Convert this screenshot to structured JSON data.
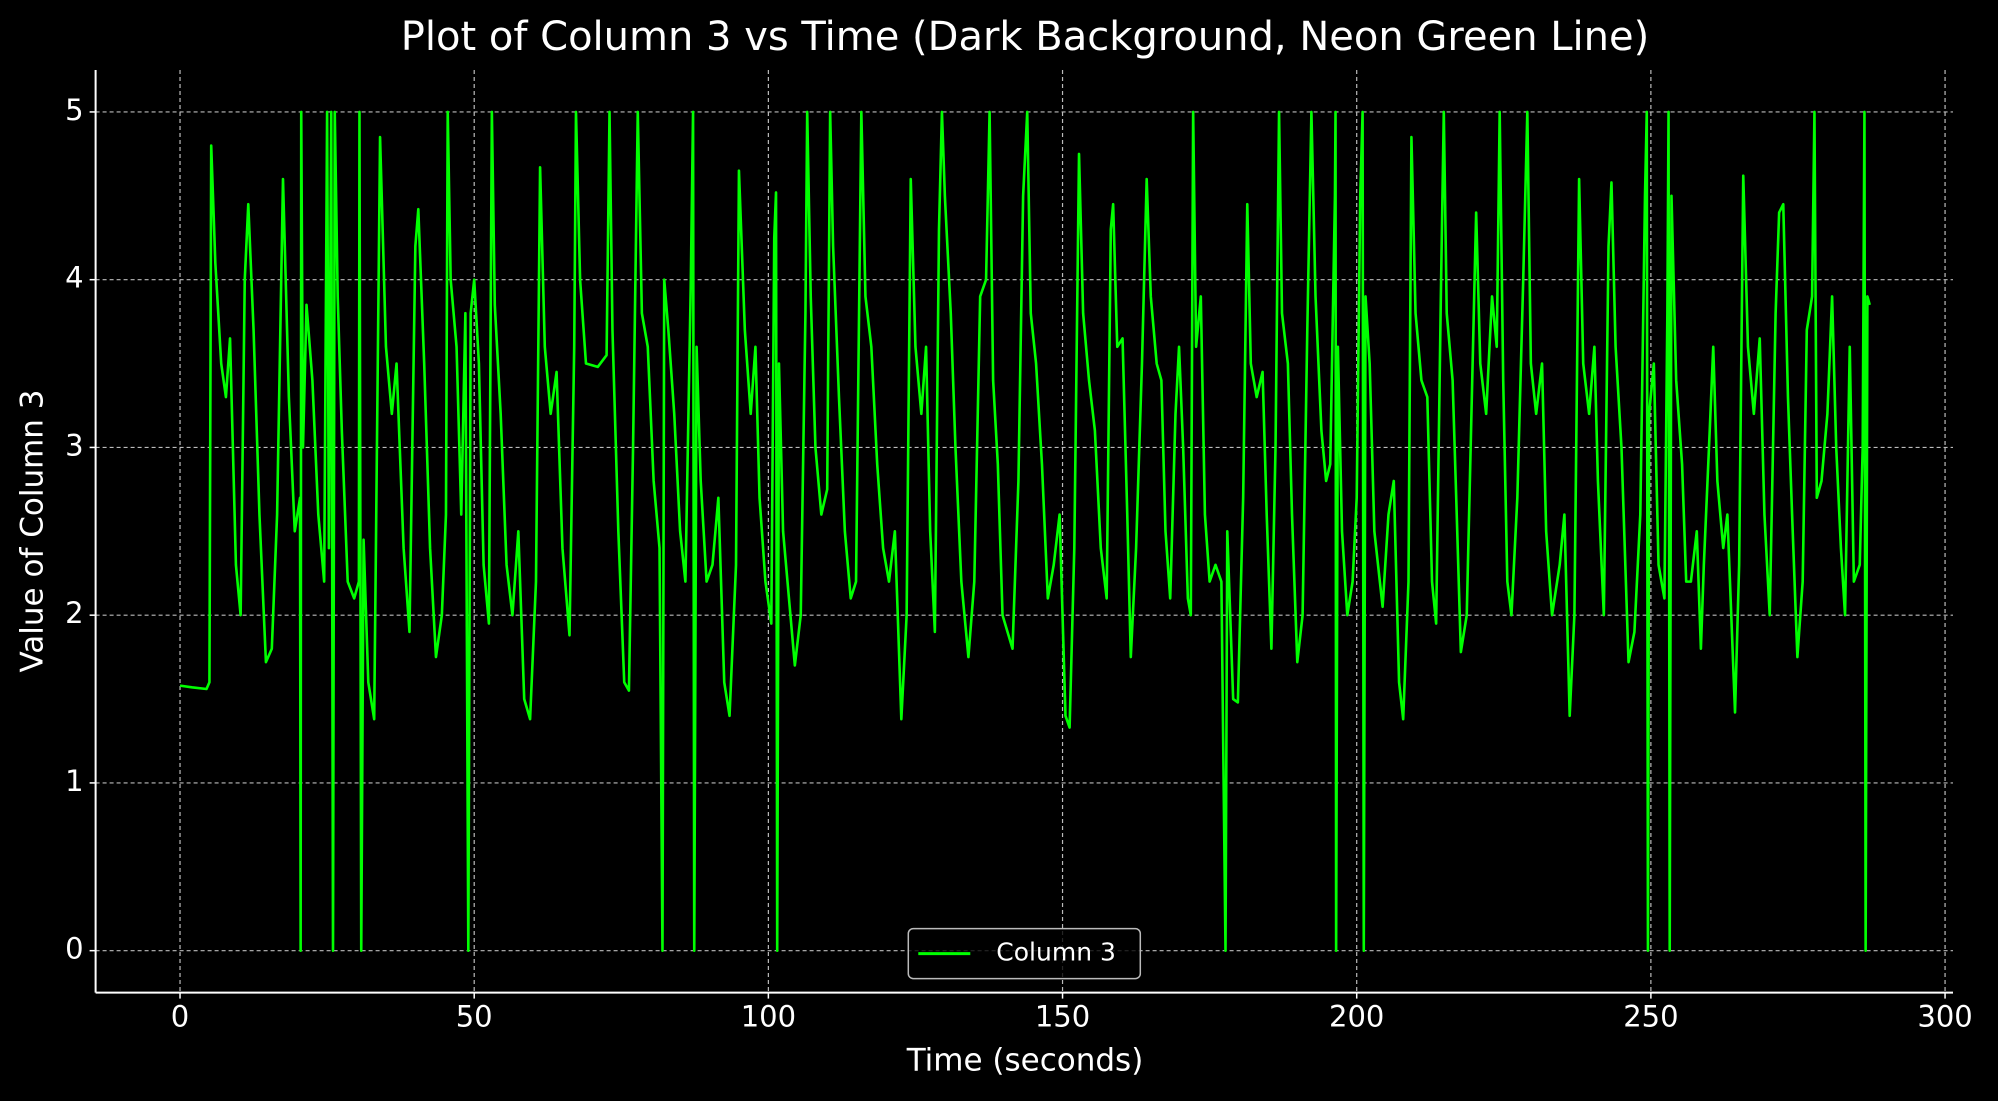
{
  "chart_data": {
    "type": "line",
    "title": "Plot of Column 3 vs Time (Dark Background, Neon Green Line)",
    "xlabel": "Time (seconds)",
    "ylabel": "Value of Column 3",
    "xlim": [
      -14.35,
      301.35
    ],
    "ylim": [
      -0.25,
      5.25
    ],
    "xticks": [
      0,
      50,
      100,
      150,
      200,
      250,
      300
    ],
    "yticks": [
      0,
      1,
      2,
      3,
      4,
      5
    ],
    "grid": true,
    "legend": "lower center",
    "x": [
      0,
      2,
      4.5,
      5,
      5.3,
      6,
      7,
      7.8,
      8.5,
      9.5,
      10.3,
      11,
      11.6,
      12.5,
      13.5,
      14.6,
      15.6,
      16.5,
      17.5,
      18.5,
      19.5,
      20.4,
      20.5,
      20.6,
      20.9,
      21.5,
      22.5,
      23.5,
      24.5,
      25,
      25.3,
      25.7,
      26,
      26.3,
      26.8,
      27.5,
      28.5,
      29.6,
      30.4,
      30.5,
      30.8,
      31.2,
      32,
      33,
      34,
      35,
      36,
      36.8,
      38,
      39,
      40,
      40.5,
      41.5,
      42.5,
      43.5,
      44.5,
      45.2,
      45.5,
      46,
      47,
      47.8,
      48.5,
      49,
      49.4,
      50,
      50.8,
      51.6,
      52.5,
      53,
      53.5,
      54.5,
      55.5,
      56.5,
      57.5,
      58.5,
      59.5,
      60.5,
      61.2,
      62,
      63,
      64,
      65,
      66.2,
      67,
      67.3,
      68,
      69,
      71,
      72.5,
      73,
      73.5,
      74.5,
      75.5,
      76.3,
      77,
      77.8,
      78.5,
      79.5,
      80.5,
      81.5,
      82,
      82.3,
      83,
      84,
      85,
      85.9,
      86.8,
      87.2,
      87.4,
      87.8,
      88.5,
      89.5,
      90.5,
      91.5,
      92.5,
      93.4,
      94.5,
      95,
      96,
      97,
      97.8,
      98.5,
      99.5,
      100.5,
      101,
      101.3,
      101.5,
      101.8,
      102.5,
      104.5,
      105.5,
      106.3,
      106.6,
      107.2,
      108,
      109,
      110,
      110.5,
      111,
      112,
      113,
      114,
      114.9,
      115.8,
      116.5,
      117.5,
      118.5,
      119.5,
      120.5,
      121.5,
      122.6,
      123.5,
      124.2,
      125,
      126,
      126.8,
      127.5,
      128.3,
      129,
      129.5,
      130,
      131,
      131.8,
      132.8,
      134,
      135,
      136,
      137,
      137.6,
      138.2,
      139,
      139.8,
      141.5,
      142.5,
      143.3,
      144,
      144.6,
      145.5,
      146.5,
      147.5,
      148.5,
      149.5,
      150.5,
      151.2,
      152,
      152.8,
      153.5,
      154.5,
      155.5,
      156.5,
      157.5,
      158.2,
      158.6,
      159.3,
      160.2,
      161,
      161.6,
      162.5,
      163.5,
      164.3,
      165,
      166,
      166.8,
      167.5,
      168.3,
      169.2,
      169.8,
      170.5,
      171.3,
      171.8,
      172.2,
      172.7,
      173.5,
      174.2,
      175,
      176,
      177,
      177.7,
      178,
      179,
      179.8,
      180.7,
      181.4,
      182,
      183,
      184,
      184.7,
      185.5,
      186.2,
      186.8,
      187.3,
      188.3,
      189,
      189.9,
      190.8,
      191.6,
      192.3,
      193,
      194,
      194.8,
      195.5,
      196.3,
      196.4,
      196.5,
      196.8,
      197.5,
      198.4,
      199.3,
      200,
      200.6,
      201,
      201.2,
      201.5,
      202.2,
      203,
      204.4,
      205.4,
      206.3,
      207.2,
      207.9,
      208.8,
      209.3,
      210,
      211,
      212,
      212.8,
      213.5,
      214.3,
      214.8,
      215.3,
      216.3,
      217,
      217.7,
      218.7,
      219.5,
      220.3,
      221,
      222,
      223,
      223.8,
      224.3,
      224.9,
      225.6,
      226.3,
      227.3,
      228.3,
      229,
      229.6,
      230.5,
      231.5,
      232.2,
      233.2,
      234.5,
      235.3,
      236.2,
      237,
      237.8,
      238.5,
      239.5,
      240.4,
      241,
      242,
      242.8,
      243.3,
      244,
      245,
      246.2,
      247.2,
      248.2,
      249,
      249.3,
      249.5,
      249.7,
      250.5,
      251.3,
      252.3,
      252.8,
      253,
      253.2,
      253.5,
      254.3,
      255.3,
      256,
      256.8,
      257.8,
      258.5,
      259,
      260,
      260.6,
      261.3,
      262.3,
      263,
      264.3,
      265,
      265.7,
      266.5,
      267.5,
      268.5,
      269.3,
      270.2,
      271.2,
      271.8,
      272.5,
      273.3,
      274,
      274.9,
      275.8,
      276.5,
      277.4,
      277.8,
      278.2,
      279,
      280,
      280.8,
      281.5,
      282.3,
      283,
      283.8,
      284.5,
      285.5,
      286,
      286.3,
      286.5,
      286.8,
      287.2
    ],
    "series": [
      {
        "name": "Column 3",
        "color": "#00ff00",
        "values": [
          1.58,
          1.57,
          1.56,
          1.6,
          4.8,
          4.1,
          3.5,
          3.3,
          3.65,
          2.3,
          2.0,
          4.0,
          4.45,
          3.7,
          2.6,
          1.72,
          1.8,
          2.6,
          4.6,
          3.3,
          2.5,
          2.7,
          0,
          5,
          3.0,
          3.85,
          3.4,
          2.6,
          2.2,
          5,
          2.4,
          5,
          0,
          5,
          3.9,
          3.1,
          2.2,
          2.1,
          2.2,
          5,
          0,
          2.45,
          1.6,
          1.38,
          4.85,
          3.6,
          3.2,
          3.5,
          2.4,
          1.9,
          4.2,
          4.42,
          3.5,
          2.4,
          1.75,
          2.0,
          2.6,
          5,
          4.0,
          3.6,
          2.6,
          3.8,
          0,
          3.8,
          4.0,
          3.5,
          2.3,
          1.95,
          5,
          3.85,
          3.2,
          2.3,
          2.0,
          2.5,
          1.5,
          1.38,
          2.2,
          4.67,
          3.6,
          3.2,
          3.45,
          2.4,
          1.88,
          3.6,
          5,
          4.0,
          3.5,
          3.48,
          3.55,
          5,
          3.7,
          2.5,
          1.6,
          1.55,
          3.0,
          5,
          3.8,
          3.6,
          2.8,
          2.4,
          0,
          4.0,
          3.7,
          3.2,
          2.5,
          2.2,
          3.95,
          5,
          0,
          3.6,
          2.8,
          2.2,
          2.3,
          2.7,
          1.6,
          1.4,
          2.3,
          4.65,
          3.7,
          3.2,
          3.6,
          2.7,
          2.2,
          1.95,
          4.25,
          4.52,
          0,
          3.5,
          2.5,
          1.7,
          2.0,
          3.8,
          5,
          3.9,
          3.0,
          2.6,
          2.75,
          5,
          4.2,
          3.3,
          2.5,
          2.1,
          2.2,
          5,
          3.9,
          3.6,
          2.9,
          2.4,
          2.2,
          2.5,
          1.38,
          2.0,
          4.6,
          3.6,
          3.2,
          3.6,
          2.5,
          1.9,
          4.3,
          5,
          4.5,
          3.8,
          3.0,
          2.2,
          1.75,
          2.2,
          3.9,
          4.0,
          5,
          3.4,
          2.9,
          2.0,
          1.8,
          2.8,
          4.5,
          5,
          3.8,
          3.5,
          2.9,
          2.1,
          2.3,
          2.6,
          1.4,
          1.33,
          2.4,
          4.75,
          3.8,
          3.4,
          3.1,
          2.4,
          2.1,
          4.3,
          4.45,
          3.6,
          3.65,
          2.6,
          1.75,
          2.4,
          3.5,
          4.6,
          3.9,
          3.5,
          3.4,
          2.5,
          2.1,
          3.2,
          3.6,
          3.0,
          2.1,
          2.0,
          5,
          3.6,
          3.9,
          2.6,
          2.2,
          2.3,
          2.2,
          0,
          2.5,
          1.5,
          1.48,
          2.7,
          4.45,
          3.5,
          3.3,
          3.45,
          2.6,
          1.8,
          3.0,
          5,
          3.8,
          3.5,
          2.6,
          1.72,
          2.0,
          3.7,
          5,
          3.9,
          3.1,
          2.8,
          2.9,
          4.5,
          5,
          0,
          3.6,
          2.5,
          2.0,
          2.2,
          2.7,
          4.5,
          5,
          0,
          3.9,
          3.5,
          2.5,
          2.05,
          2.6,
          2.8,
          1.6,
          1.38,
          2.2,
          4.85,
          3.8,
          3.4,
          3.3,
          2.2,
          1.95,
          3.9,
          5,
          3.8,
          3.4,
          2.6,
          1.78,
          2.0,
          3.2,
          4.4,
          3.5,
          3.2,
          3.9,
          3.6,
          5,
          3.4,
          2.2,
          2.0,
          2.7,
          4.0,
          5,
          3.5,
          3.2,
          3.5,
          2.5,
          2.0,
          2.3,
          2.6,
          1.4,
          2.0,
          4.6,
          3.5,
          3.2,
          3.6,
          2.8,
          2.0,
          4.2,
          4.58,
          3.6,
          3.0,
          1.72,
          1.9,
          2.6,
          4.5,
          5,
          0,
          3.2,
          3.5,
          2.3,
          2.1,
          3.8,
          5,
          0,
          4.5,
          3.4,
          2.9,
          2.2,
          2.2,
          2.5,
          1.8,
          2.3,
          3.1,
          3.6,
          2.8,
          2.4,
          2.6,
          1.42,
          2.3,
          4.62,
          3.6,
          3.2,
          3.65,
          2.6,
          2.0,
          3.8,
          4.4,
          4.45,
          3.3,
          2.6,
          1.75,
          2.2,
          3.7,
          3.9,
          5,
          2.7,
          2.8,
          3.2,
          3.9,
          3.0,
          2.4,
          2.0,
          3.6,
          2.2,
          2.3,
          3.0,
          5,
          0,
          3.9,
          3.85
        ]
      }
    ]
  }
}
